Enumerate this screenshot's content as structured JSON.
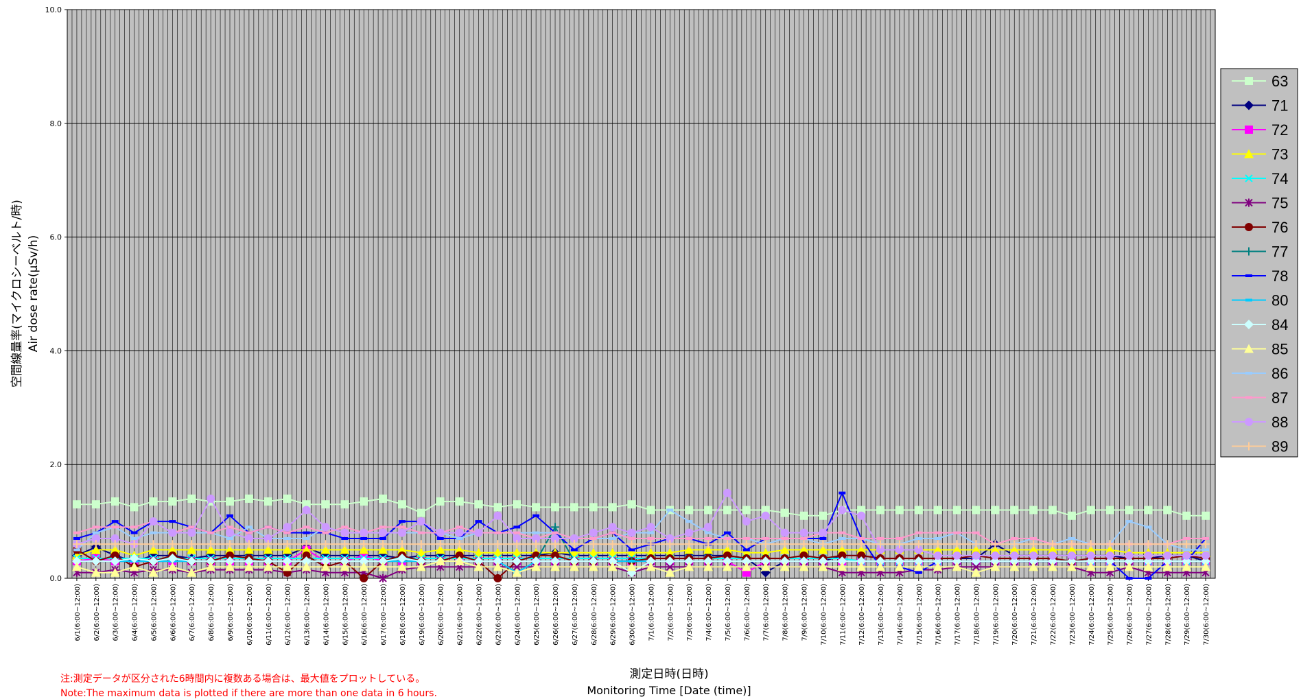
{
  "chart_data": {
    "type": "line",
    "ylabel_ja": "空間線量率(マイクロシーベルト/時)",
    "ylabel_en": "Air dose rate(μSv/h)",
    "xlabel_ja": "測定日時(日時)",
    "xlabel_en": "Monitoring Time [Date (time)]",
    "note_ja": "注:測定データが区分された6時間内に複数ある場合は、最大値をプロットしている。",
    "note_en": "Note:The maximum data is plotted if there are more than one data in 6 hours.",
    "ylim": [
      0,
      10
    ],
    "yticks": [
      "0.0",
      "2.0",
      "4.0",
      "6.0",
      "8.0",
      "10.0"
    ],
    "grid": true,
    "plot_background": "#c0c0c0",
    "legend_position": "right",
    "x_labels": [
      "6/1(6:00~12:00)",
      "6/2(6:00~12:00)",
      "6/3(6:00~12:00)",
      "6/4(6:00~12:00)",
      "6/5(6:00~12:00)",
      "6/6(6:00~12:00)",
      "6/7(6:00~12:00)",
      "6/8(6:00~12:00)",
      "6/9(6:00~12:00)",
      "6/10(6:00~12:00)",
      "6/11(6:00~12:00)",
      "6/12(6:00~12:00)",
      "6/13(6:00~12:00)",
      "6/14(6:00~12:00)",
      "6/15(6:00~12:00)",
      "6/16(6:00~12:00)",
      "6/17(6:00~12:00)",
      "6/18(6:00~12:00)",
      "6/19(6:00~12:00)",
      "6/20(6:00~12:00)",
      "6/21(6:00~12:00)",
      "6/22(6:00~12:00)",
      "6/23(6:00~12:00)",
      "6/24(6:00~12:00)",
      "6/25(6:00~12:00)",
      "6/26(6:00~12:00)",
      "6/27(6:00~12:00)",
      "6/28(6:00~12:00)",
      "6/29(6:00~12:00)",
      "6/30(6:00~12:00)",
      "7/1(6:00~12:00)",
      "7/2(6:00~12:00)",
      "7/3(6:00~12:00)",
      "7/4(6:00~12:00)",
      "7/5(6:00~12:00)",
      "7/6(6:00~12:00)",
      "7/7(6:00~12:00)",
      "7/8(6:00~12:00)",
      "7/9(6:00~12:00)",
      "7/10(6:00~12:00)",
      "7/11(6:00~12:00)",
      "7/12(6:00~12:00)",
      "7/13(6:00~12:00)",
      "7/14(6:00~12:00)",
      "7/15(6:00~12:00)",
      "7/16(6:00~12:00)",
      "7/17(6:00~12:00)",
      "7/18(6:00~12:00)",
      "7/19(6:00~12:00)",
      "7/20(6:00~12:00)",
      "7/21(6:00~12:00)",
      "7/22(6:00~12:00)",
      "7/23(6:00~12:00)",
      "7/24(6:00~12:00)",
      "7/25(6:00~12:00)",
      "7/26(6:00~12:00)",
      "7/27(6:00~12:00)",
      "7/28(6:00~12:00)",
      "7/29(6:00~12:00)",
      "7/30(6:00~12:00)"
    ],
    "series": [
      {
        "name": "63",
        "color": "#ccffcc",
        "marker": "square",
        "values": [
          1.3,
          1.3,
          1.35,
          1.25,
          1.35,
          1.35,
          1.4,
          1.35,
          1.35,
          1.4,
          1.35,
          1.4,
          1.3,
          1.3,
          1.3,
          1.35,
          1.4,
          1.3,
          1.15,
          1.35,
          1.35,
          1.3,
          1.25,
          1.3,
          1.25,
          1.25,
          1.25,
          1.25,
          1.25,
          1.3,
          1.2,
          1.2,
          1.2,
          1.2,
          1.2,
          1.2,
          1.2,
          1.15,
          1.1,
          1.1,
          1.2,
          1.2,
          1.2,
          1.2,
          1.2,
          1.2,
          1.2,
          1.2,
          1.2,
          1.2,
          1.2,
          1.2,
          1.1,
          1.2,
          1.2,
          1.2,
          1.2,
          1.2,
          1.1,
          1.1
        ]
      },
      {
        "name": "71",
        "color": "#000080",
        "marker": "diamond",
        "values": [
          0.4,
          0.55,
          0.4,
          0.3,
          0.4,
          0.4,
          0.35,
          0.4,
          0.4,
          0.4,
          0.4,
          0.4,
          0.55,
          0.4,
          0.4,
          0.4,
          0.4,
          0.35,
          0.4,
          0.4,
          0.4,
          0.4,
          0.4,
          0.4,
          0.4,
          0.45,
          0.4,
          0.4,
          0.4,
          0.4,
          0.4,
          0.4,
          0.4,
          0.4,
          0.4,
          0.35,
          0.1,
          0.3,
          0.3,
          0.3,
          0.4,
          0.4,
          0.35,
          0.35,
          0.35,
          0.35,
          0.35,
          0.35,
          0.6,
          0.4,
          0.4,
          0.4,
          0.4,
          0.4,
          0.4,
          0.35,
          0.35,
          0.4,
          0.4,
          0.3
        ]
      },
      {
        "name": "72",
        "color": "#ff00ff",
        "marker": "square",
        "values": [
          0.3,
          0.35,
          0.3,
          0.3,
          0.3,
          0.3,
          0.3,
          0.3,
          0.3,
          0.3,
          0.3,
          0.3,
          0.5,
          0.3,
          0.3,
          0.4,
          0.3,
          0.3,
          0.3,
          0.3,
          0.3,
          0.3,
          0.3,
          0.3,
          0.3,
          0.3,
          0.3,
          0.3,
          0.3,
          0.3,
          0.3,
          0.3,
          0.3,
          0.3,
          0.3,
          0.1,
          0.3,
          0.3,
          0.3,
          0.3,
          0.3,
          0.3,
          0.3,
          0.3,
          0.3,
          0.3,
          0.3,
          0.3,
          0.3,
          0.3,
          0.3,
          0.3,
          0.3,
          0.3,
          0.3,
          0.3,
          0.3,
          0.3,
          0.3,
          0.3
        ]
      },
      {
        "name": "73",
        "color": "#ffff00",
        "marker": "triangle",
        "values": [
          0.4,
          0.5,
          0.5,
          0.4,
          0.5,
          0.5,
          0.5,
          0.5,
          0.5,
          0.5,
          0.5,
          0.5,
          0.5,
          0.5,
          0.5,
          0.5,
          0.5,
          0.5,
          0.45,
          0.5,
          0.5,
          0.45,
          0.45,
          0.45,
          0.45,
          0.45,
          0.45,
          0.45,
          0.45,
          0.45,
          0.45,
          0.45,
          0.5,
          0.5,
          0.5,
          0.45,
          0.45,
          0.5,
          0.5,
          0.5,
          0.5,
          0.5,
          0.5,
          0.5,
          0.5,
          0.5,
          0.5,
          0.5,
          0.5,
          0.5,
          0.5,
          0.5,
          0.5,
          0.5,
          0.5,
          0.45,
          0.45,
          0.45,
          0.45,
          0.45
        ]
      },
      {
        "name": "74",
        "color": "#00ffff",
        "marker": "x",
        "values": [
          0.35,
          0.35,
          0.35,
          0.35,
          0.35,
          0.35,
          0.35,
          0.35,
          0.35,
          0.35,
          0.35,
          0.35,
          0.35,
          0.35,
          0.35,
          0.35,
          0.35,
          0.35,
          0.35,
          0.35,
          0.35,
          0.35,
          0.35,
          0.35,
          0.35,
          0.35,
          0.35,
          0.35,
          0.35,
          0.35,
          0.35,
          0.35,
          0.35,
          0.35,
          0.35,
          0.35,
          0.35,
          0.35,
          0.35,
          0.35,
          0.35,
          0.3,
          0.3,
          0.3,
          0.3,
          0.3,
          0.3,
          0.3,
          0.3,
          0.3,
          0.3,
          0.3,
          0.3,
          0.3,
          0.3,
          0.3,
          0.3,
          0.3,
          0.3,
          0.3
        ]
      },
      {
        "name": "75",
        "color": "#800080",
        "marker": "star",
        "values": [
          0.1,
          0.1,
          0.15,
          0.1,
          0.15,
          0.15,
          0.1,
          0.15,
          0.15,
          0.15,
          0.15,
          0.1,
          0.15,
          0.1,
          0.1,
          0.1,
          0.0,
          0.15,
          0.2,
          0.2,
          0.2,
          0.2,
          0.2,
          0.2,
          0.2,
          0.2,
          0.2,
          0.2,
          0.2,
          0.1,
          0.2,
          0.2,
          0.2,
          0.2,
          0.2,
          0.2,
          0.2,
          0.2,
          0.2,
          0.2,
          0.1,
          0.1,
          0.1,
          0.1,
          0.15,
          0.15,
          0.2,
          0.2,
          0.2,
          0.2,
          0.2,
          0.2,
          0.2,
          0.1,
          0.1,
          0.2,
          0.1,
          0.1,
          0.1,
          0.1
        ]
      },
      {
        "name": "76",
        "color": "#800000",
        "marker": "circle",
        "values": [
          0.5,
          0.3,
          0.4,
          0.2,
          0.3,
          0.4,
          0.3,
          0.3,
          0.4,
          0.35,
          0.3,
          0.1,
          0.4,
          0.2,
          0.3,
          0.0,
          0.3,
          0.4,
          0.3,
          0.3,
          0.4,
          0.3,
          0.0,
          0.3,
          0.4,
          0.4,
          0.3,
          0.3,
          0.3,
          0.3,
          0.35,
          0.35,
          0.35,
          0.35,
          0.4,
          0.35,
          0.35,
          0.35,
          0.4,
          0.35,
          0.4,
          0.4,
          0.35,
          0.35,
          0.35,
          0.35,
          0.35,
          0.4,
          0.35,
          0.35,
          0.35,
          0.35,
          0.3,
          0.35,
          0.35,
          0.35,
          0.35,
          0.35,
          0.4,
          0.35
        ]
      },
      {
        "name": "77",
        "color": "#008080",
        "marker": "plus",
        "values": [
          0.3,
          0.3,
          0.3,
          0.3,
          0.3,
          0.3,
          0.3,
          0.3,
          0.3,
          0.3,
          0.3,
          0.3,
          0.3,
          0.3,
          0.3,
          0.3,
          0.3,
          0.3,
          0.3,
          0.3,
          0.3,
          0.3,
          0.3,
          0.3,
          0.3,
          0.9,
          0.3,
          0.3,
          0.3,
          0.3,
          0.3,
          0.3,
          0.3,
          0.3,
          0.3,
          0.3,
          0.3,
          0.3,
          0.3,
          0.3,
          0.3,
          0.3,
          0.3,
          0.3,
          0.3,
          0.3,
          0.3,
          0.3,
          0.3,
          0.3,
          0.3,
          0.3,
          0.3,
          0.3,
          0.3,
          0.3,
          0.3,
          0.3,
          0.3,
          0.3
        ]
      },
      {
        "name": "78",
        "color": "#0000ff",
        "marker": "dash",
        "values": [
          0.7,
          0.8,
          1.0,
          0.8,
          1.0,
          1.0,
          0.9,
          0.8,
          1.1,
          0.8,
          0.9,
          0.8,
          0.8,
          0.8,
          0.7,
          0.7,
          0.7,
          1.0,
          1.0,
          0.7,
          0.7,
          1.0,
          0.8,
          0.9,
          1.1,
          0.8,
          0.5,
          0.7,
          0.8,
          0.5,
          0.6,
          0.7,
          0.7,
          0.6,
          0.8,
          0.5,
          0.7,
          0.7,
          0.7,
          0.7,
          1.5,
          0.7,
          0.2,
          0.2,
          0.1,
          0.3,
          0.3,
          0.3,
          0.3,
          0.3,
          0.3,
          0.3,
          0.3,
          0.3,
          0.3,
          0.0,
          0.0,
          0.3,
          0.3,
          0.7
        ]
      },
      {
        "name": "80",
        "color": "#00ccff",
        "marker": "dash",
        "values": [
          0.3,
          0.3,
          0.3,
          0.3,
          0.3,
          0.3,
          0.3,
          0.3,
          0.3,
          0.3,
          0.3,
          0.3,
          0.3,
          0.3,
          0.3,
          0.3,
          0.3,
          0.3,
          0.3,
          0.3,
          0.3,
          0.3,
          0.3,
          0.1,
          0.3,
          0.3,
          0.3,
          0.3,
          0.3,
          0.3,
          0.3,
          0.3,
          0.3,
          0.3,
          0.3,
          0.3,
          0.3,
          0.3,
          0.3,
          0.3,
          0.3,
          0.3,
          0.3,
          0.3,
          0.3,
          0.3,
          0.3,
          0.3,
          0.3,
          0.3,
          0.3,
          0.3,
          0.3,
          0.3,
          0.3,
          0.3,
          0.3,
          0.3,
          0.3,
          0.3
        ]
      },
      {
        "name": "84",
        "color": "#ccffff",
        "marker": "diamond",
        "values": [
          0.3,
          0.3,
          0.3,
          0.35,
          0.3,
          0.35,
          0.3,
          0.3,
          0.3,
          0.3,
          0.3,
          0.3,
          0.3,
          0.3,
          0.3,
          0.3,
          0.3,
          0.35,
          0.3,
          0.3,
          0.3,
          0.3,
          0.3,
          0.3,
          0.3,
          0.3,
          0.3,
          0.3,
          0.3,
          0.1,
          0.3,
          0.3,
          0.3,
          0.3,
          0.3,
          0.3,
          0.3,
          0.3,
          0.3,
          0.3,
          0.3,
          0.3,
          0.3,
          0.3,
          0.3,
          0.3,
          0.3,
          0.3,
          0.3,
          0.3,
          0.3,
          0.3,
          0.3,
          0.3,
          0.3,
          0.3,
          0.3,
          0.3,
          0.3,
          0.3
        ]
      },
      {
        "name": "85",
        "color": "#ffff99",
        "marker": "triangle",
        "values": [
          0.2,
          0.1,
          0.1,
          0.2,
          0.1,
          0.2,
          0.1,
          0.2,
          0.2,
          0.2,
          0.2,
          0.2,
          0.2,
          0.2,
          0.2,
          0.2,
          0.2,
          0.2,
          0.2,
          0.3,
          0.3,
          0.2,
          0.2,
          0.1,
          0.2,
          0.2,
          0.2,
          0.2,
          0.2,
          0.2,
          0.2,
          0.1,
          0.2,
          0.2,
          0.2,
          0.2,
          0.2,
          0.2,
          0.2,
          0.2,
          0.2,
          0.2,
          0.2,
          0.2,
          0.2,
          0.2,
          0.2,
          0.1,
          0.2,
          0.2,
          0.2,
          0.2,
          0.2,
          0.2,
          0.2,
          0.2,
          0.2,
          0.2,
          0.2,
          0.2
        ]
      },
      {
        "name": "86",
        "color": "#99ccff",
        "marker": "dash",
        "values": [
          0.5,
          0.8,
          0.9,
          0.7,
          0.8,
          0.8,
          0.8,
          0.8,
          0.7,
          0.9,
          0.7,
          0.7,
          0.7,
          0.9,
          0.8,
          0.8,
          0.8,
          0.8,
          0.8,
          0.8,
          0.7,
          0.8,
          0.8,
          0.8,
          0.8,
          0.8,
          0.7,
          0.7,
          0.7,
          0.8,
          0.8,
          1.2,
          1.0,
          0.8,
          0.7,
          0.7,
          0.6,
          0.7,
          0.7,
          0.6,
          0.7,
          0.7,
          0.6,
          0.6,
          0.7,
          0.7,
          0.8,
          0.6,
          0.6,
          0.6,
          0.7,
          0.6,
          0.7,
          0.6,
          0.6,
          1.0,
          0.9,
          0.6,
          0.5,
          0.5
        ]
      },
      {
        "name": "87",
        "color": "#ff99cc",
        "marker": "dash",
        "values": [
          0.8,
          0.9,
          0.9,
          0.9,
          1.0,
          0.8,
          0.9,
          0.8,
          0.9,
          0.8,
          0.9,
          0.8,
          0.9,
          0.8,
          0.9,
          0.8,
          0.9,
          0.9,
          0.8,
          0.8,
          0.9,
          0.8,
          0.8,
          0.8,
          0.7,
          0.8,
          0.7,
          0.7,
          0.8,
          0.7,
          0.7,
          0.7,
          0.7,
          0.7,
          0.7,
          0.7,
          0.7,
          0.7,
          0.7,
          0.8,
          0.8,
          0.7,
          0.7,
          0.7,
          0.8,
          0.8,
          0.8,
          0.8,
          0.6,
          0.7,
          0.7,
          0.6,
          0.6,
          0.6,
          0.6,
          0.6,
          0.6,
          0.6,
          0.7,
          0.7
        ]
      },
      {
        "name": "88",
        "color": "#cc99ff",
        "marker": "circle",
        "values": [
          0.6,
          0.7,
          0.7,
          0.6,
          1.0,
          0.8,
          0.8,
          1.4,
          0.8,
          0.7,
          0.7,
          0.9,
          1.2,
          0.9,
          0.8,
          0.8,
          0.8,
          0.8,
          1.0,
          0.8,
          0.8,
          0.8,
          1.1,
          0.7,
          0.7,
          0.7,
          0.7,
          0.8,
          0.9,
          0.8,
          0.9,
          0.7,
          0.8,
          0.9,
          1.5,
          1.0,
          1.1,
          0.8,
          0.8,
          0.8,
          1.2,
          1.1,
          0.5,
          0.5,
          0.5,
          0.4,
          0.4,
          0.4,
          0.4,
          0.4,
          0.4,
          0.4,
          0.4,
          0.4,
          0.4,
          0.4,
          0.4,
          0.4,
          0.4,
          0.4
        ]
      },
      {
        "name": "89",
        "color": "#ffcc99",
        "marker": "plus",
        "values": [
          0.6,
          0.6,
          0.6,
          0.6,
          0.6,
          0.6,
          0.6,
          0.6,
          0.6,
          0.6,
          0.6,
          0.6,
          0.6,
          0.6,
          0.6,
          0.6,
          0.6,
          0.6,
          0.6,
          0.6,
          0.6,
          0.6,
          0.6,
          0.6,
          0.6,
          0.6,
          0.6,
          0.6,
          0.6,
          0.6,
          0.6,
          0.6,
          0.6,
          0.6,
          0.6,
          0.6,
          0.6,
          0.6,
          0.6,
          0.6,
          0.6,
          0.6,
          0.6,
          0.6,
          0.6,
          0.6,
          0.6,
          0.6,
          0.6,
          0.6,
          0.6,
          0.6,
          0.6,
          0.6,
          0.6,
          0.6,
          0.6,
          0.6,
          0.6,
          0.6
        ]
      }
    ]
  }
}
